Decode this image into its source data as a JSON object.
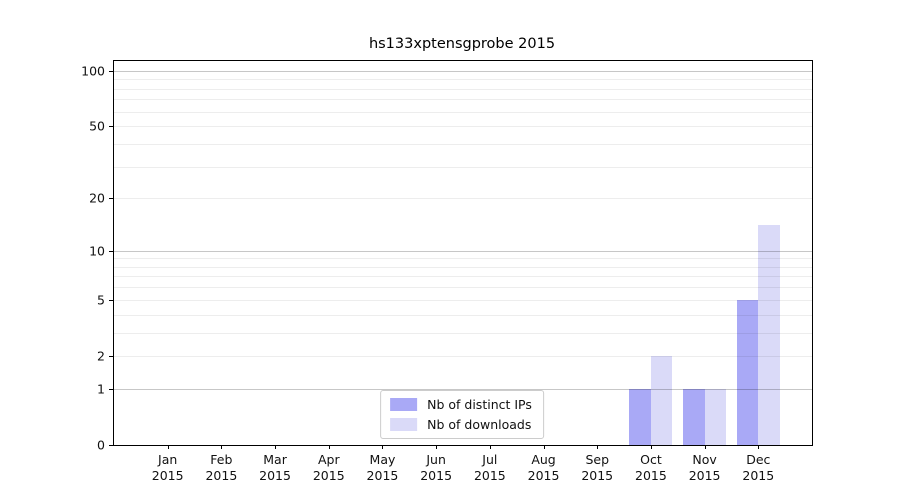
{
  "window": {
    "background": "#ffffff"
  },
  "chart_data": {
    "type": "bar",
    "title": "hs133xptensgprobe 2015",
    "categories": [
      "Jan",
      "Feb",
      "Mar",
      "Apr",
      "May",
      "Jun",
      "Jul",
      "Aug",
      "Sep",
      "Oct",
      "Nov",
      "Dec"
    ],
    "category_sub": "2015",
    "series": [
      {
        "name": "Nb of distinct IPs",
        "color": "#a9a9f6",
        "values": [
          0,
          0,
          0,
          0,
          0,
          0,
          0,
          0,
          0,
          1,
          1,
          5
        ]
      },
      {
        "name": "Nb of downloads",
        "color": "#dadaf8",
        "values": [
          0,
          0,
          0,
          0,
          0,
          0,
          0,
          0,
          0,
          2,
          1,
          14
        ]
      }
    ],
    "xlabel": "",
    "ylabel": "",
    "yscale": "log1p",
    "ylim": [
      0,
      113
    ],
    "yticks": [
      0,
      1,
      2,
      5,
      10,
      20,
      50,
      100
    ],
    "grid_major": [
      1,
      10,
      100
    ],
    "grid_minor": [
      2,
      3,
      4,
      5,
      6,
      7,
      8,
      9,
      20,
      30,
      40,
      50,
      60,
      70,
      80,
      90
    ],
    "grid": "horizontal",
    "bar_width_frac": 0.4,
    "legend_position": "lower center",
    "axis_color": "#000000",
    "grid_color": "#b0b0b0"
  }
}
